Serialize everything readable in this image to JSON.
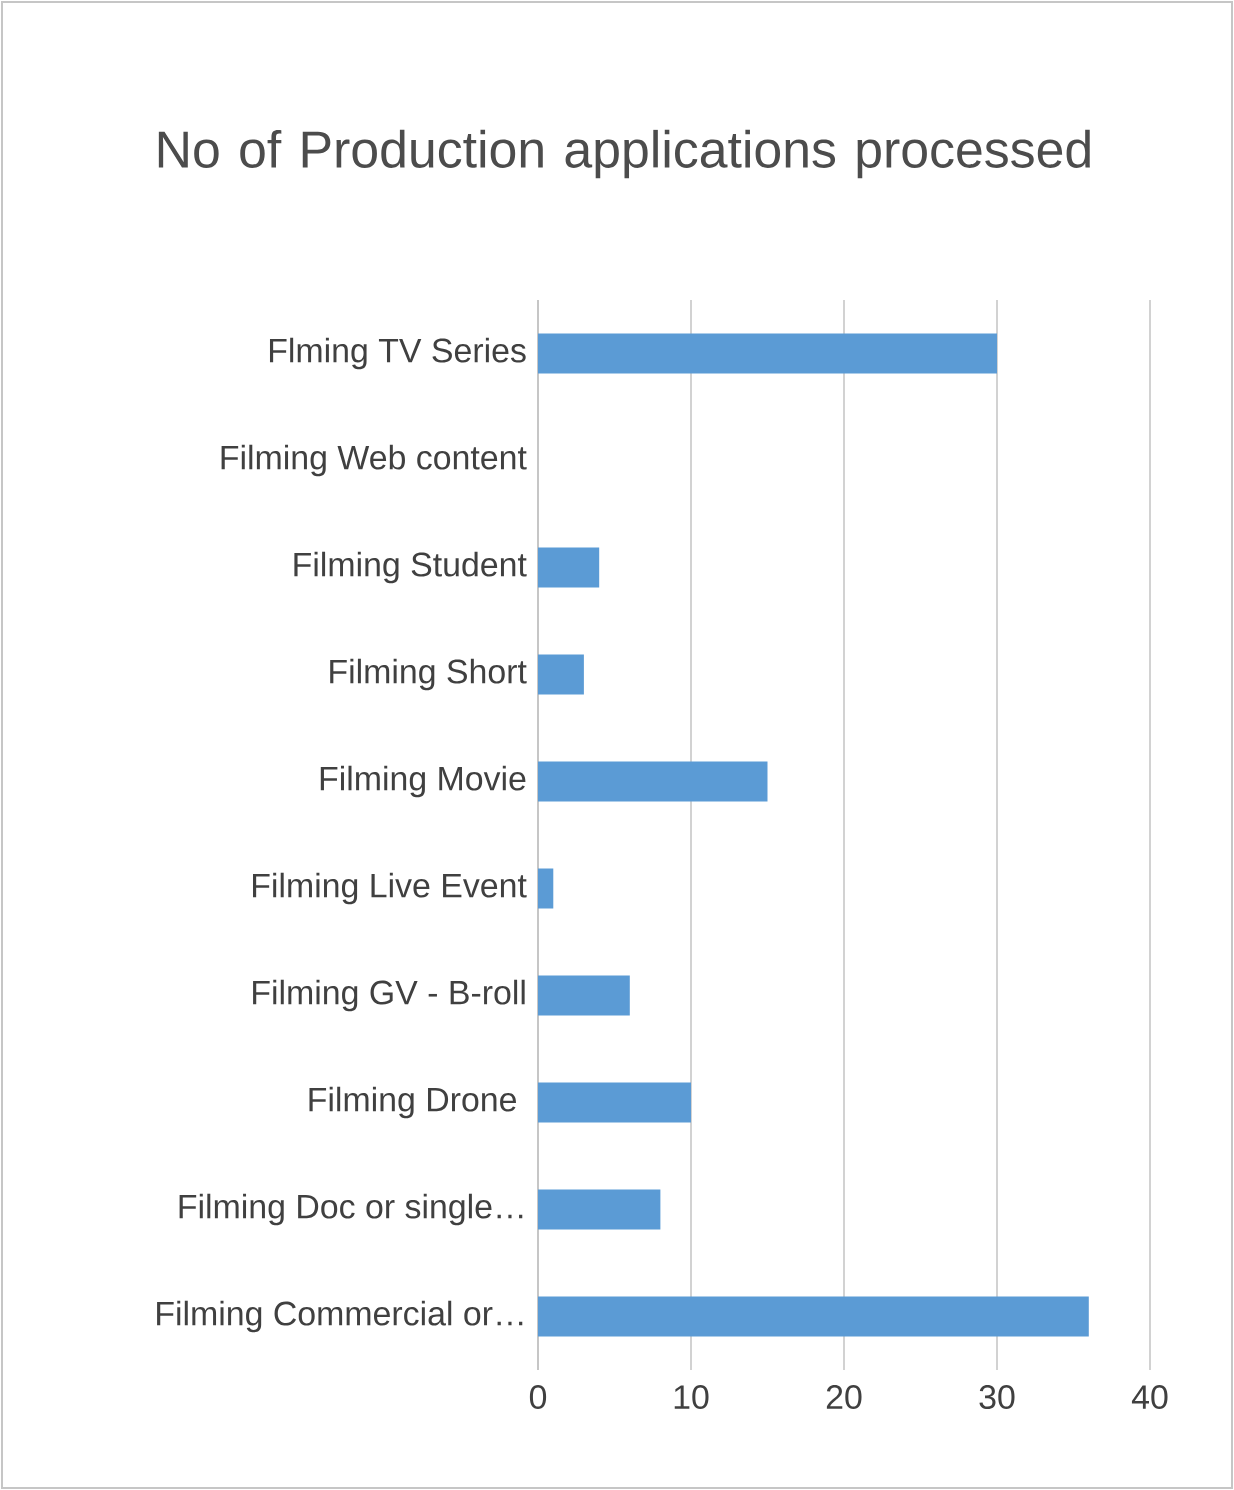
{
  "chart_data": {
    "type": "bar",
    "orientation": "horizontal",
    "title": "No of Production applications processed",
    "categories": [
      "Flming TV Series",
      "Filming Web content",
      "Filming Student",
      "Filming Short",
      "Filming Movie",
      "Filming Live Event",
      "Filming GV - B-roll",
      "Filming Drone ",
      "Filming Doc or single…",
      "Filming Commercial or…"
    ],
    "values": [
      30,
      0,
      4,
      3,
      15,
      1,
      6,
      10,
      8,
      36
    ],
    "color": "#5b9bd5",
    "xlim": [
      0,
      40
    ],
    "xticks": [
      0,
      10,
      20,
      30,
      40
    ],
    "grid": "x"
  }
}
